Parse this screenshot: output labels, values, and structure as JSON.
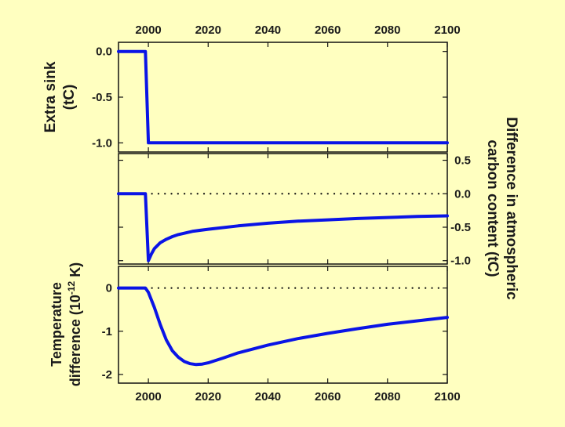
{
  "colors": {
    "background": "#ffffc0",
    "line": "#0a14e6",
    "frame": "#111111"
  },
  "chart_data": [
    {
      "type": "line",
      "panel": "top",
      "ylabel": [
        "Extra sink",
        "(tC)"
      ],
      "ylabel_side": "left",
      "xlim": [
        1990,
        2100
      ],
      "ylim": [
        -1.1,
        0.1
      ],
      "x_ticks": [
        "2000",
        "2020",
        "2040",
        "2060",
        "2080",
        "2100"
      ],
      "x_tick_labels_side": "top",
      "y_ticks": [
        "0.0",
        "-0.5",
        "-1.0"
      ],
      "y_tick_labels_side": "left",
      "zero_line": false,
      "series": [
        {
          "x": [
            1990,
            1999,
            2000,
            2100
          ],
          "y": [
            0.0,
            0.0,
            -1.0,
            -1.0
          ]
        }
      ]
    },
    {
      "type": "line",
      "panel": "middle",
      "ylabel": [
        "Difference in atmospheric",
        "carbon content (tC)"
      ],
      "ylabel_side": "right",
      "xlim": [
        1990,
        2100
      ],
      "ylim": [
        -1.05,
        0.6
      ],
      "y_ticks": [
        "0.5",
        "0.0",
        "-0.5",
        "-1.0"
      ],
      "y_tick_labels_side": "right",
      "zero_line": true,
      "series": [
        {
          "x": [
            1990,
            1999,
            2000,
            2001,
            2002,
            2004,
            2006,
            2008,
            2010,
            2015,
            2020,
            2030,
            2040,
            2050,
            2060,
            2070,
            2080,
            2090,
            2100
          ],
          "y": [
            0.0,
            0.0,
            -1.0,
            -0.9,
            -0.82,
            -0.73,
            -0.68,
            -0.64,
            -0.61,
            -0.56,
            -0.53,
            -0.48,
            -0.44,
            -0.41,
            -0.39,
            -0.37,
            -0.355,
            -0.34,
            -0.33
          ]
        }
      ]
    },
    {
      "type": "line",
      "panel": "bottom",
      "ylabel": [
        "Temperature",
        "difference (10-12 K)"
      ],
      "ylabel_side": "left",
      "xlim": [
        1990,
        2100
      ],
      "ylim": [
        -2.2,
        0.5
      ],
      "x_ticks": [
        "2000",
        "2020",
        "2040",
        "2060",
        "2080",
        "2100"
      ],
      "x_tick_labels_side": "bottom",
      "y_ticks": [
        "0",
        "-1",
        "-2"
      ],
      "y_tick_labels_side": "left",
      "zero_line": true,
      "series": [
        {
          "x": [
            1990,
            1999,
            2000,
            2002,
            2004,
            2006,
            2008,
            2010,
            2012,
            2014,
            2016,
            2018,
            2020,
            2025,
            2030,
            2040,
            2050,
            2060,
            2070,
            2080,
            2090,
            2100
          ],
          "y": [
            0.0,
            0.0,
            -0.1,
            -0.45,
            -0.85,
            -1.2,
            -1.45,
            -1.6,
            -1.7,
            -1.75,
            -1.77,
            -1.76,
            -1.73,
            -1.62,
            -1.5,
            -1.32,
            -1.17,
            -1.05,
            -0.94,
            -0.84,
            -0.76,
            -0.68
          ]
        }
      ]
    }
  ]
}
